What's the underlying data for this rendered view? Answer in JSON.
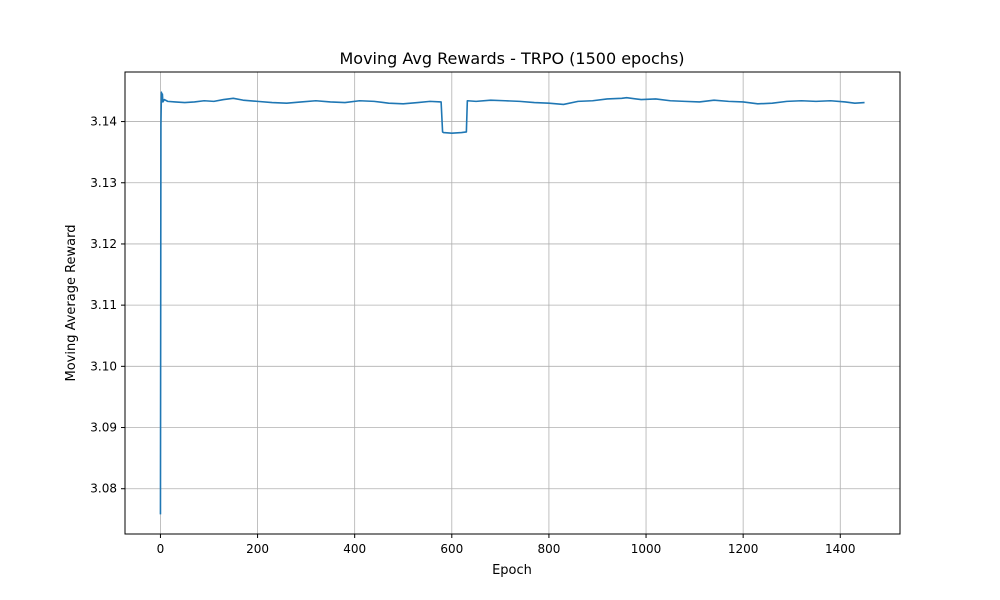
{
  "chart_data": {
    "type": "line",
    "title": "Moving Avg Rewards - TRPO (1500 epochs)",
    "xlabel": "Epoch",
    "ylabel": "Moving Average Reward",
    "xlim": [
      -73,
      1523
    ],
    "ylim": [
      3.0726,
      3.1481
    ],
    "xticks": [
      0,
      200,
      400,
      600,
      800,
      1000,
      1200,
      1400
    ],
    "yticks": [
      3.08,
      3.09,
      3.1,
      3.11,
      3.12,
      3.13,
      3.14
    ],
    "ytick_labels": [
      "3.08",
      "3.09",
      "3.10",
      "3.11",
      "3.12",
      "3.13",
      "3.14"
    ],
    "grid": true,
    "series": [
      {
        "color": "#1f77b4",
        "x": [
          0,
          1,
          2,
          3,
          4,
          5,
          8,
          15,
          30,
          50,
          70,
          90,
          110,
          130,
          150,
          170,
          200,
          230,
          260,
          290,
          320,
          350,
          380,
          410,
          440,
          470,
          500,
          530,
          555,
          578,
          581,
          583,
          600,
          620,
          630,
          632,
          650,
          680,
          710,
          740,
          770,
          800,
          830,
          860,
          890,
          920,
          950,
          960,
          990,
          1020,
          1050,
          1080,
          1110,
          1140,
          1170,
          1200,
          1230,
          1260,
          1290,
          1320,
          1350,
          1380,
          1410,
          1430,
          1450
        ],
        "y": [
          3.0758,
          3.1395,
          3.1448,
          3.1435,
          3.1445,
          3.1432,
          3.1436,
          3.1433,
          3.1432,
          3.1431,
          3.1432,
          3.1434,
          3.1433,
          3.1436,
          3.1438,
          3.1435,
          3.1433,
          3.1431,
          3.143,
          3.1432,
          3.1434,
          3.1432,
          3.1431,
          3.1434,
          3.1433,
          3.143,
          3.1429,
          3.1431,
          3.1433,
          3.1432,
          3.1383,
          3.1382,
          3.1381,
          3.1382,
          3.1383,
          3.1434,
          3.1433,
          3.1435,
          3.1434,
          3.1433,
          3.1431,
          3.143,
          3.1428,
          3.1433,
          3.1434,
          3.1437,
          3.1438,
          3.1439,
          3.1436,
          3.1437,
          3.1434,
          3.1433,
          3.1432,
          3.1435,
          3.1433,
          3.1432,
          3.1429,
          3.143,
          3.1433,
          3.1434,
          3.1433,
          3.1434,
          3.1432,
          3.143,
          3.1431
        ]
      }
    ]
  }
}
